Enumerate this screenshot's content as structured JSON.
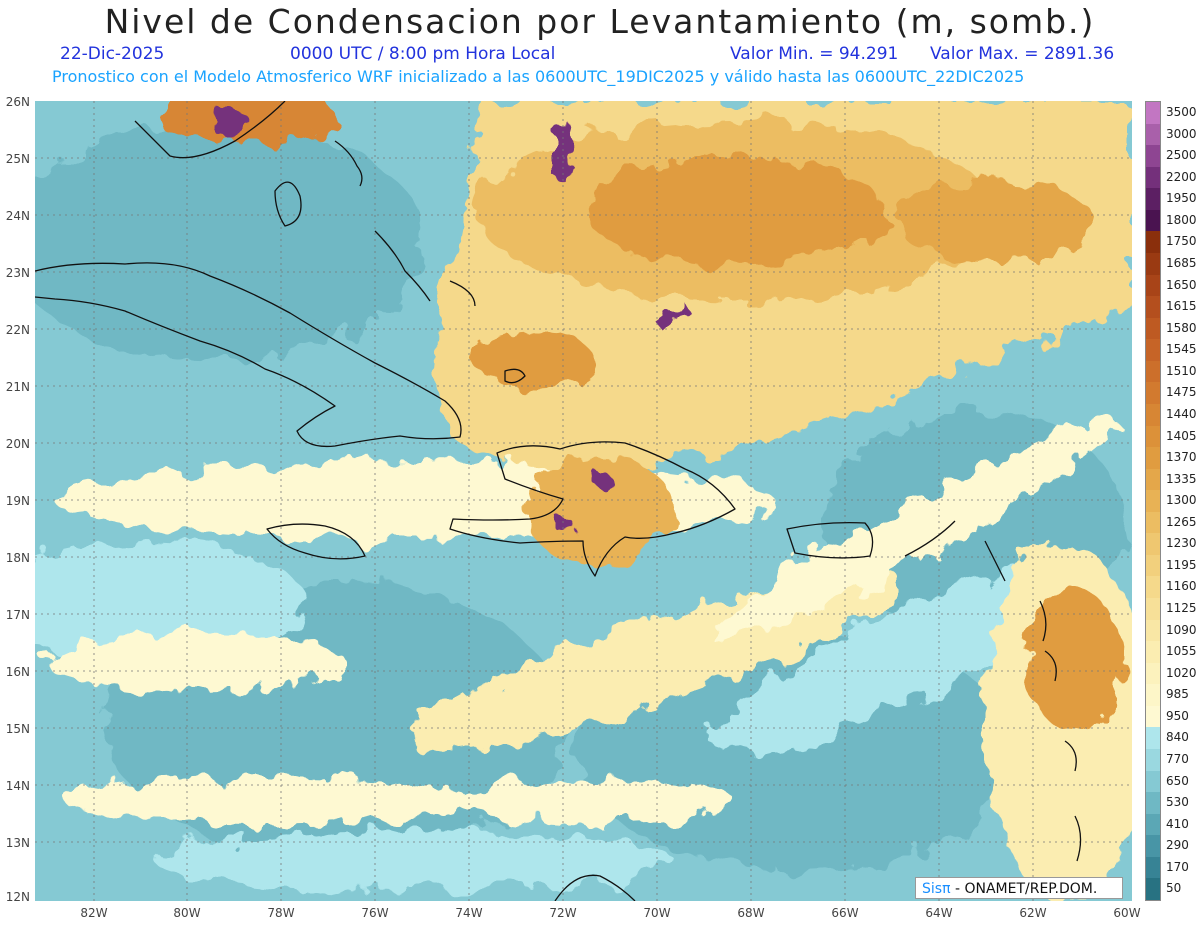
{
  "title": "Nivel de Condensacion por Levantamiento (m, somb.)",
  "date": "22-Dic-2025",
  "time": "0000 UTC / 8:00 pm Hora Local",
  "valmin": "Valor Min. = 94.291",
  "valmax": "Valor Max. = 2891.36",
  "subtitle": "Pronostico con el Modelo Atmosferico WRF inicializado a las 0600UTC_19DIC2025 y válido hasta las  0600UTC_22DIC2025",
  "credit": {
    "brand": "SisPI",
    "brand_glyphs": "Sisπ",
    "rest": "- ONAMET/REP.DOM."
  },
  "lat_labels": [
    "26N",
    "25N",
    "24N",
    "23N",
    "22N",
    "21N",
    "20N",
    "19N",
    "18N",
    "17N",
    "16N",
    "15N",
    "14N",
    "13N",
    "12N"
  ],
  "lon_labels": [
    "82W",
    "80W",
    "78W",
    "76W",
    "74W",
    "72W",
    "70W",
    "68W",
    "66W",
    "64W",
    "62W",
    "60W"
  ],
  "legend": {
    "labels": [
      "3500",
      "3000",
      "2500",
      "2200",
      "1950",
      "1800",
      "1750",
      "1685",
      "1650",
      "1615",
      "1580",
      "1545",
      "1510",
      "1475",
      "1440",
      "1405",
      "1370",
      "1335",
      "1300",
      "1265",
      "1230",
      "1195",
      "1160",
      "1125",
      "1090",
      "1055",
      "1020",
      "985",
      "950",
      "840",
      "770",
      "650",
      "530",
      "410",
      "290",
      "170",
      "50"
    ],
    "colors": [
      "#c276c2",
      "#a960aa",
      "#8e4592",
      "#74307b",
      "#5c1f63",
      "#4a1350",
      "#8a2f0c",
      "#9a3a12",
      "#a84418",
      "#b44f1e",
      "#be5a22",
      "#c66427",
      "#cc6f2b",
      "#d27a2f",
      "#d78634",
      "#dc9139",
      "#e09c40",
      "#e4a74a",
      "#e8b255",
      "#ecbd62",
      "#efc770",
      "#f2d07d",
      "#f5d98b",
      "#f7e098",
      "#f9e7a5",
      "#fbedb1",
      "#fcf2bd",
      "#fdf6c8",
      "#fef9d2",
      "#aee6ec",
      "#9ad8e0",
      "#85c9d3",
      "#6fb8c4",
      "#5ba7b5",
      "#4895a6",
      "#378395",
      "#287282"
    ]
  },
  "regions": [
    {
      "name": "cuba"
    },
    {
      "name": "jamaica"
    },
    {
      "name": "hispaniola"
    },
    {
      "name": "puerto-rico"
    },
    {
      "name": "florida"
    },
    {
      "name": "bahamas"
    },
    {
      "name": "lesser-antilles"
    },
    {
      "name": "venezuela"
    }
  ]
}
